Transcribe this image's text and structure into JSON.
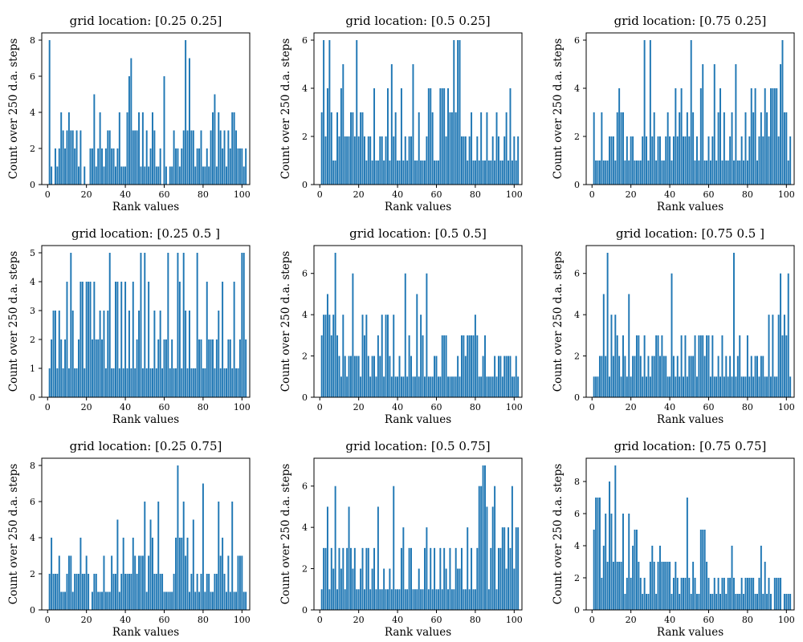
{
  "chart_data": [
    {
      "type": "bar",
      "title": "grid location:  [0.25 0.25]",
      "xlabel": "Rank values",
      "ylabel": "Count over 250 d.a.  steps",
      "xlim": [
        -3,
        104
      ],
      "ylim": [
        0,
        8.4
      ],
      "xticks": [
        0,
        20,
        40,
        60,
        80,
        100
      ],
      "yticks": [
        0,
        2,
        4,
        6,
        8
      ],
      "x_start": 1,
      "values": [
        8,
        1,
        0,
        2,
        1,
        2,
        4,
        3,
        2,
        3,
        4,
        3,
        3,
        2,
        3,
        1,
        3,
        0,
        1,
        0,
        0,
        2,
        2,
        5,
        1,
        2,
        4,
        2,
        1,
        2,
        3,
        3,
        2,
        2,
        1,
        2,
        4,
        1,
        1,
        1,
        4,
        6,
        7,
        3,
        3,
        3,
        4,
        1,
        4,
        1,
        3,
        1,
        2,
        4,
        3,
        1,
        1,
        2,
        0,
        6,
        1,
        0,
        1,
        1,
        3,
        2,
        2,
        1,
        2,
        3,
        8,
        3,
        7,
        3,
        3,
        1,
        2,
        2,
        3,
        1,
        1,
        2,
        1,
        3,
        4,
        5,
        1,
        4,
        3,
        2,
        3,
        1,
        3,
        2,
        4,
        4,
        3,
        2,
        2,
        2,
        1,
        2
      ]
    },
    {
      "type": "bar",
      "title": "grid location:  [0.5 0.25]",
      "xlabel": "Rank values",
      "ylabel": "Count over 250 d.a.  steps",
      "xlim": [
        -3,
        104
      ],
      "ylim": [
        0,
        6.3
      ],
      "xticks": [
        0,
        20,
        40,
        60,
        80,
        100
      ],
      "yticks": [
        0,
        2,
        4,
        6
      ],
      "x_start": 1,
      "values": [
        3,
        6,
        2,
        4,
        6,
        3,
        1,
        1,
        3,
        2,
        4,
        5,
        2,
        2,
        2,
        3,
        3,
        2,
        6,
        2,
        3,
        3,
        2,
        1,
        2,
        2,
        1,
        4,
        1,
        1,
        2,
        2,
        1,
        2,
        4,
        1,
        5,
        2,
        3,
        1,
        1,
        4,
        1,
        2,
        1,
        2,
        2,
        5,
        1,
        1,
        3,
        1,
        1,
        1,
        2,
        4,
        4,
        3,
        1,
        1,
        1,
        4,
        4,
        4,
        2,
        4,
        3,
        3,
        6,
        3,
        6,
        6,
        2,
        2,
        2,
        1,
        2,
        3,
        1,
        1,
        2,
        1,
        3,
        1,
        1,
        3,
        1,
        1,
        2,
        1,
        3,
        2,
        1,
        1,
        2,
        3,
        1,
        4,
        1,
        2,
        1,
        2
      ]
    },
    {
      "type": "bar",
      "title": "grid location:  [0.75 0.25]",
      "xlabel": "Rank values",
      "ylabel": "Count over 250 d.a.  steps",
      "xlim": [
        -3,
        104
      ],
      "ylim": [
        0,
        6.3
      ],
      "xticks": [
        0,
        20,
        40,
        60,
        80,
        100
      ],
      "yticks": [
        0,
        2,
        4,
        6
      ],
      "x_start": 1,
      "values": [
        3,
        1,
        1,
        1,
        3,
        1,
        1,
        1,
        2,
        2,
        2,
        1,
        3,
        4,
        3,
        3,
        1,
        2,
        1,
        2,
        2,
        1,
        1,
        1,
        1,
        2,
        6,
        2,
        1,
        6,
        2,
        3,
        1,
        2,
        2,
        1,
        1,
        2,
        3,
        2,
        1,
        2,
        4,
        2,
        3,
        4,
        2,
        2,
        3,
        2,
        6,
        3,
        1,
        2,
        1,
        4,
        5,
        1,
        1,
        2,
        1,
        2,
        5,
        1,
        3,
        4,
        1,
        3,
        1,
        1,
        2,
        3,
        1,
        5,
        1,
        1,
        2,
        1,
        3,
        1,
        2,
        4,
        3,
        4,
        1,
        2,
        3,
        2,
        4,
        3,
        2,
        4,
        4,
        4,
        4,
        2,
        5,
        6,
        3,
        3,
        1,
        2
      ]
    },
    {
      "type": "bar",
      "title": "grid location:  [0.25 0.5 ]",
      "xlabel": "Rank values",
      "ylabel": "Count over 250 d.a.  steps",
      "xlim": [
        -3,
        104
      ],
      "ylim": [
        0,
        5.25
      ],
      "xticks": [
        0,
        20,
        40,
        60,
        80,
        100
      ],
      "yticks": [
        0,
        1,
        2,
        3,
        4,
        5
      ],
      "x_start": 1,
      "values": [
        1,
        2,
        3,
        3,
        1,
        3,
        2,
        1,
        2,
        4,
        1,
        5,
        3,
        1,
        1,
        2,
        4,
        4,
        1,
        4,
        4,
        4,
        2,
        4,
        2,
        2,
        3,
        2,
        3,
        1,
        3,
        5,
        1,
        1,
        4,
        4,
        1,
        4,
        1,
        4,
        1,
        3,
        1,
        4,
        1,
        2,
        3,
        5,
        1,
        5,
        1,
        4,
        1,
        1,
        3,
        1,
        2,
        3,
        1,
        2,
        2,
        5,
        1,
        2,
        1,
        1,
        5,
        4,
        1,
        5,
        3,
        1,
        3,
        1,
        1,
        1,
        5,
        2,
        2,
        1,
        1,
        4,
        2,
        2,
        2,
        1,
        2,
        3,
        1,
        4,
        1,
        1,
        2,
        2,
        1,
        4,
        1,
        1,
        2,
        5,
        5,
        2
      ]
    },
    {
      "type": "bar",
      "title": "grid location:  [0.5 0.5]",
      "xlabel": "Rank values",
      "ylabel": "Count over 250 d.a.  steps",
      "xlim": [
        -3,
        104
      ],
      "ylim": [
        0,
        7.35
      ],
      "xticks": [
        0,
        20,
        40,
        60,
        80,
        100
      ],
      "yticks": [
        0,
        2,
        4,
        6
      ],
      "x_start": 1,
      "values": [
        3,
        4,
        4,
        5,
        4,
        3,
        4,
        7,
        3,
        2,
        1,
        4,
        2,
        1,
        2,
        2,
        6,
        2,
        2,
        2,
        1,
        4,
        3,
        4,
        2,
        1,
        2,
        2,
        1,
        3,
        2,
        4,
        1,
        4,
        4,
        2,
        1,
        4,
        1,
        1,
        2,
        1,
        1,
        6,
        1,
        3,
        2,
        1,
        1,
        5,
        1,
        4,
        3,
        1,
        6,
        1,
        1,
        1,
        2,
        2,
        1,
        1,
        3,
        3,
        3,
        1,
        1,
        1,
        1,
        1,
        2,
        1,
        3,
        3,
        2,
        3,
        3,
        3,
        3,
        4,
        3,
        1,
        1,
        2,
        3,
        1,
        1,
        1,
        1,
        2,
        1,
        2,
        2,
        1,
        2,
        2,
        2,
        2,
        1,
        1,
        2,
        1
      ]
    },
    {
      "type": "bar",
      "title": "grid location:  [0.75 0.5 ]",
      "xlabel": "Rank values",
      "ylabel": "Count over 250 d.a.  steps",
      "xlim": [
        -3,
        104
      ],
      "ylim": [
        0,
        7.35
      ],
      "xticks": [
        0,
        20,
        40,
        60,
        80,
        100
      ],
      "yticks": [
        0,
        2,
        4,
        6
      ],
      "x_start": 1,
      "values": [
        1,
        1,
        1,
        2,
        2,
        5,
        2,
        7,
        1,
        4,
        2,
        4,
        3,
        2,
        1,
        3,
        2,
        1,
        5,
        1,
        2,
        2,
        3,
        3,
        2,
        1,
        3,
        1,
        2,
        1,
        2,
        2,
        3,
        3,
        2,
        3,
        2,
        2,
        1,
        1,
        6,
        2,
        1,
        2,
        1,
        3,
        1,
        3,
        1,
        2,
        2,
        2,
        3,
        1,
        3,
        3,
        3,
        2,
        3,
        3,
        1,
        3,
        1,
        1,
        2,
        1,
        3,
        1,
        2,
        1,
        2,
        1,
        7,
        1,
        2,
        3,
        1,
        1,
        1,
        3,
        1,
        2,
        1,
        2,
        2,
        1,
        2,
        2,
        1,
        1,
        4,
        1,
        4,
        1,
        1,
        4,
        6,
        3,
        4,
        3,
        6,
        1
      ]
    },
    {
      "type": "bar",
      "title": "grid location:  [0.25 0.75]",
      "xlabel": "Rank values",
      "ylabel": "Count over 250 d.a.  steps",
      "xlim": [
        -3,
        104
      ],
      "ylim": [
        0,
        8.4
      ],
      "xticks": [
        0,
        20,
        40,
        60,
        80,
        100
      ],
      "yticks": [
        0,
        2,
        4,
        6,
        8
      ],
      "x_start": 1,
      "values": [
        2,
        4,
        2,
        2,
        2,
        3,
        1,
        1,
        1,
        2,
        3,
        3,
        1,
        2,
        2,
        2,
        4,
        2,
        2,
        3,
        2,
        0,
        1,
        2,
        2,
        1,
        1,
        1,
        3,
        1,
        1,
        1,
        3,
        2,
        2,
        5,
        1,
        2,
        4,
        2,
        2,
        2,
        2,
        4,
        3,
        2,
        3,
        3,
        3,
        6,
        1,
        3,
        5,
        4,
        2,
        2,
        6,
        2,
        2,
        1,
        1,
        1,
        1,
        1,
        2,
        4,
        8,
        4,
        4,
        6,
        3,
        4,
        1,
        2,
        5,
        1,
        2,
        1,
        2,
        7,
        1,
        2,
        2,
        1,
        1,
        2,
        2,
        6,
        3,
        4,
        2,
        1,
        3,
        1,
        6,
        1,
        1,
        3,
        3,
        3,
        1,
        1
      ]
    },
    {
      "type": "bar",
      "title": "grid location:  [0.5 0.75]",
      "xlabel": "Rank values",
      "ylabel": "Count over 250 d.a.  steps",
      "xlim": [
        -3,
        104
      ],
      "ylim": [
        0,
        7.35
      ],
      "xticks": [
        0,
        20,
        40,
        60,
        80,
        100
      ],
      "yticks": [
        0,
        2,
        4,
        6
      ],
      "x_start": 1,
      "values": [
        1,
        3,
        3,
        5,
        1,
        3,
        2,
        6,
        1,
        3,
        2,
        3,
        1,
        3,
        5,
        3,
        2,
        3,
        1,
        1,
        2,
        3,
        1,
        3,
        3,
        1,
        2,
        3,
        1,
        5,
        1,
        1,
        2,
        1,
        1,
        2,
        1,
        6,
        1,
        1,
        1,
        3,
        4,
        1,
        1,
        3,
        3,
        1,
        1,
        1,
        2,
        1,
        1,
        3,
        4,
        1,
        3,
        1,
        3,
        1,
        1,
        3,
        1,
        3,
        2,
        1,
        3,
        1,
        1,
        3,
        2,
        2,
        3,
        1,
        1,
        4,
        1,
        3,
        1,
        1,
        3,
        6,
        6,
        7,
        7,
        5,
        1,
        3,
        5,
        6,
        1,
        3,
        3,
        4,
        4,
        2,
        4,
        3,
        6,
        2,
        4,
        4
      ]
    },
    {
      "type": "bar",
      "title": "grid location:  [0.75 0.75]",
      "xlabel": "Rank values",
      "ylabel": "Count over 250 d.a.  steps",
      "xlim": [
        -3,
        104
      ],
      "ylim": [
        0,
        9.45
      ],
      "xticks": [
        0,
        20,
        40,
        60,
        80,
        100
      ],
      "yticks": [
        0,
        2,
        4,
        6,
        8
      ],
      "x_start": 1,
      "values": [
        5,
        7,
        7,
        7,
        2,
        4,
        6,
        3,
        8,
        6,
        3,
        9,
        3,
        3,
        3,
        6,
        1,
        2,
        6,
        2,
        4,
        5,
        5,
        3,
        2,
        1,
        2,
        1,
        1,
        3,
        4,
        3,
        1,
        3,
        4,
        3,
        3,
        3,
        3,
        3,
        1,
        2,
        3,
        2,
        1,
        2,
        2,
        2,
        7,
        2,
        1,
        3,
        2,
        1,
        1,
        5,
        5,
        5,
        3,
        2,
        1,
        1,
        2,
        1,
        2,
        1,
        2,
        2,
        1,
        2,
        2,
        4,
        2,
        1,
        1,
        1,
        2,
        1,
        2,
        2,
        2,
        2,
        2,
        1,
        1,
        2,
        4,
        1,
        3,
        1,
        2,
        1,
        0,
        2,
        2,
        2,
        2,
        0,
        1,
        1,
        1,
        1
      ]
    }
  ]
}
